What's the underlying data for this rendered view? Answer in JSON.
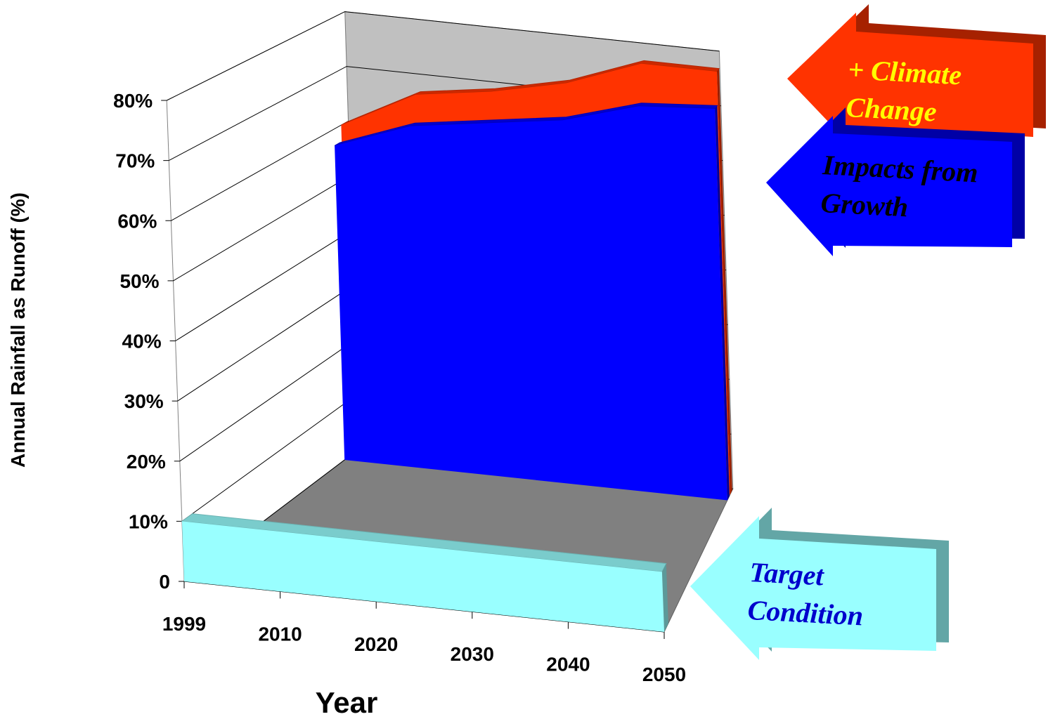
{
  "chart_data": {
    "type": "area3d",
    "x_label": "Year",
    "y_label": "Annual Rainfall as Runoff (%)",
    "categories": [
      "1999",
      "2010",
      "2020",
      "2030",
      "2040",
      "2050"
    ],
    "series": [
      {
        "name": "+ Climate Change",
        "color": "#ff3300",
        "values": [
          60,
          67,
          69,
          72,
          77,
          77
        ]
      },
      {
        "name": "Impacts from Growth",
        "color": "#0000ff",
        "values": [
          57,
          62,
          64,
          66,
          70,
          71
        ]
      },
      {
        "name": "Target Condition",
        "color": "#99ffff",
        "values": [
          10,
          10,
          10,
          10,
          10,
          10
        ]
      }
    ],
    "ylim": [
      0,
      80
    ],
    "yticks": [
      0,
      {
        "value": 10,
        "label": "10%"
      },
      {
        "value": 20,
        "label": "20%"
      },
      {
        "value": 30,
        "label": "30%"
      },
      {
        "value": 40,
        "label": "40%"
      },
      {
        "value": 50,
        "label": "50%"
      },
      {
        "value": 60,
        "label": "60%"
      },
      {
        "value": 70,
        "label": "70%"
      },
      {
        "value": 80,
        "label": "80%"
      }
    ],
    "grid": true
  }
}
